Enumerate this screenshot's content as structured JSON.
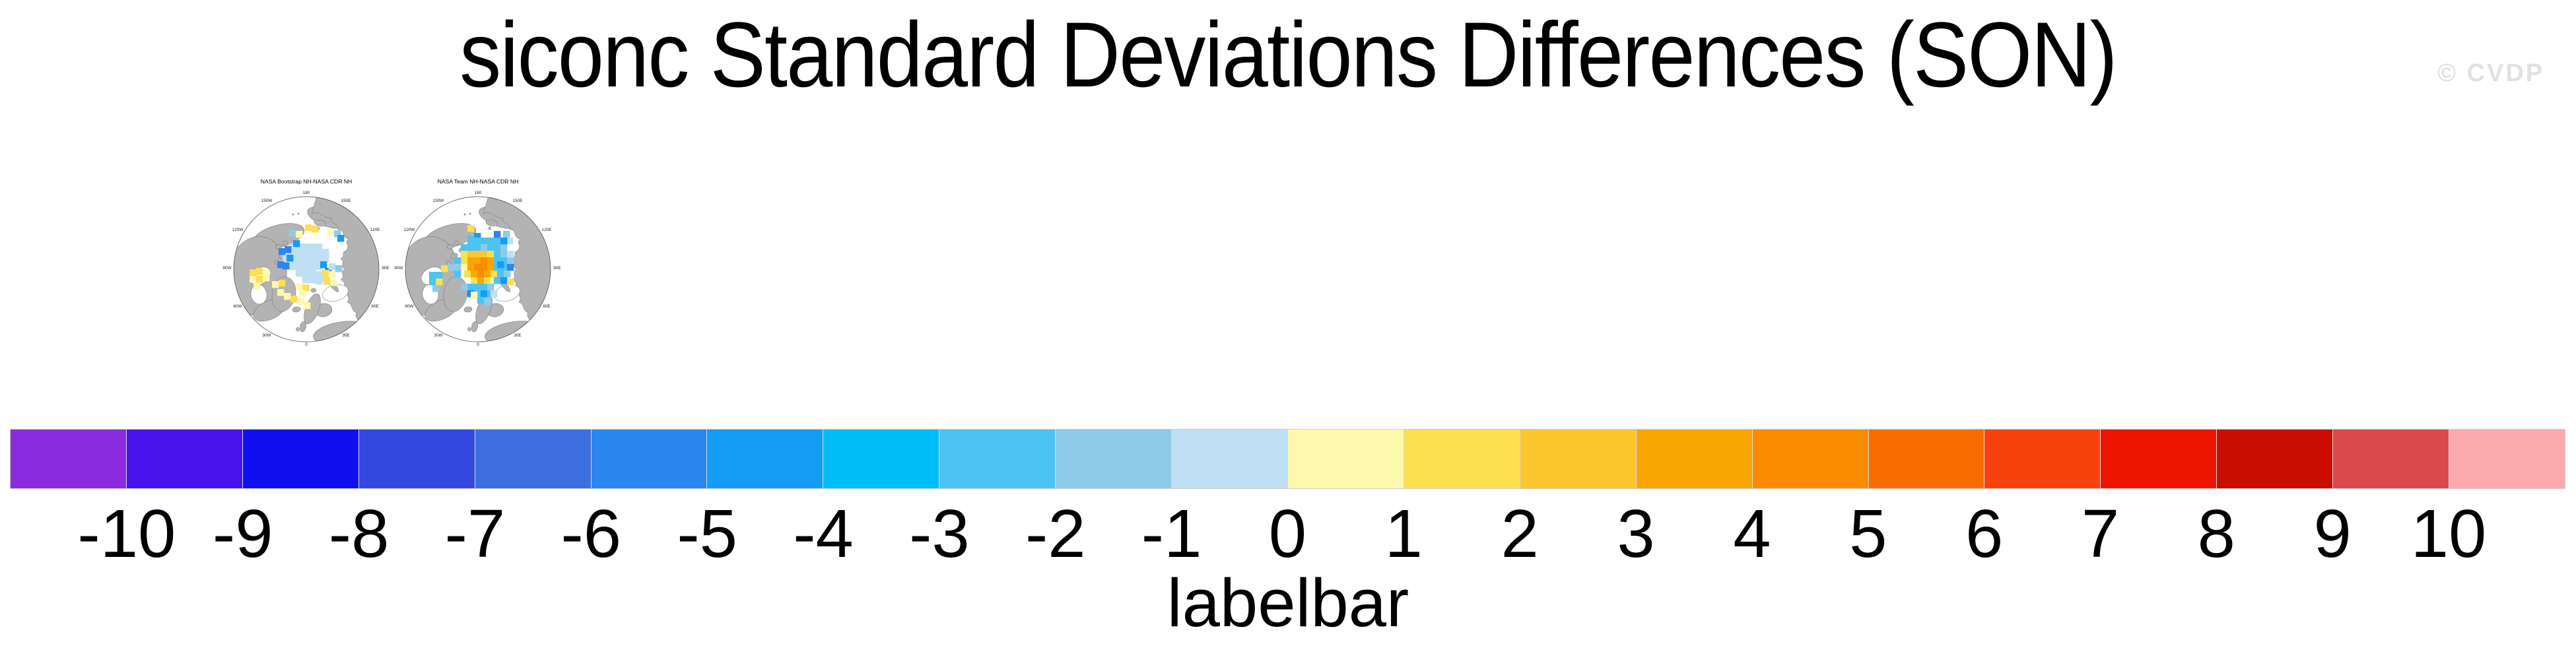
{
  "page": {
    "title": "siconc Standard Deviations Differences (SON)",
    "watermark": "© CVDP"
  },
  "maps": {
    "lon_labels": [
      "180",
      "150W",
      "150E",
      "120W",
      "120E",
      "90W",
      "90E",
      "60W",
      "60E",
      "30W",
      "30E",
      "0"
    ],
    "land_color": "#b3b3b3",
    "ocean_color": "#ffffff",
    "panels": [
      {
        "title": "NASA Bootstrap NH-NASA CDR NH",
        "cells": [
          [
            -2,
            -68,
            12
          ],
          [
            8,
            -66,
            12
          ],
          [
            -26,
            -60,
            9
          ],
          [
            -16,
            -58,
            11
          ],
          [
            32,
            -61,
            11
          ],
          [
            42,
            -59,
            9
          ],
          [
            47,
            -52,
            6
          ],
          [
            -26,
            -39,
            10
          ],
          [
            -16,
            -39,
            10
          ],
          [
            -6,
            -39,
            10
          ],
          [
            4,
            -39,
            10
          ],
          [
            14,
            -39,
            10
          ],
          [
            -36,
            -31,
            10
          ],
          [
            -26,
            -29,
            10
          ],
          [
            -16,
            -29,
            10
          ],
          [
            -6,
            -29,
            10
          ],
          [
            4,
            -29,
            10
          ],
          [
            14,
            -29,
            10
          ],
          [
            24,
            -31,
            10
          ],
          [
            -36,
            -21,
            10
          ],
          [
            -26,
            -19,
            10
          ],
          [
            -16,
            -19,
            10
          ],
          [
            -6,
            -19,
            10
          ],
          [
            4,
            -19,
            10
          ],
          [
            14,
            -19,
            10
          ],
          [
            24,
            -21,
            10
          ],
          [
            -26,
            -9,
            10
          ],
          [
            -16,
            -9,
            10
          ],
          [
            -6,
            -9,
            10
          ],
          [
            4,
            -9,
            10
          ],
          [
            14,
            -9,
            10
          ],
          [
            -16,
            1,
            10
          ],
          [
            -6,
            1,
            10
          ],
          [
            4,
            1,
            10
          ],
          [
            14,
            3,
            10
          ],
          [
            -6,
            11,
            10
          ],
          [
            4,
            11,
            10
          ],
          [
            14,
            13,
            10
          ],
          [
            24,
            9,
            10
          ],
          [
            -33,
            -35,
            5
          ],
          [
            -30,
            -22,
            6
          ],
          [
            -36,
            -10,
            5
          ],
          [
            21,
            -12,
            6
          ],
          [
            28,
            -2,
            5
          ],
          [
            -42,
            -32,
            5
          ],
          [
            -44,
            -12,
            5
          ],
          [
            -20,
            -44,
            6
          ],
          [
            -86,
            0,
            12
          ],
          [
            -76,
            -2,
            12
          ],
          [
            -66,
            0,
            11
          ],
          [
            -86,
            10,
            11
          ],
          [
            -76,
            10,
            12
          ],
          [
            -66,
            8,
            11
          ],
          [
            -80,
            20,
            11
          ],
          [
            -52,
            18,
            11
          ],
          [
            -42,
            16,
            12
          ],
          [
            -44,
            30,
            11
          ],
          [
            -34,
            36,
            11
          ],
          [
            -16,
            21,
            11
          ],
          [
            -6,
            23,
            12
          ],
          [
            -11,
            31,
            11
          ],
          [
            -24,
            40,
            12
          ],
          [
            -14,
            44,
            11
          ],
          [
            -4,
            50,
            11
          ],
          [
            24,
            1,
            12
          ],
          [
            34,
            3,
            11
          ],
          [
            26,
            13,
            12
          ],
          [
            36,
            15,
            11
          ],
          [
            34,
            -9,
            10
          ],
          [
            44,
            -6,
            9
          ]
        ]
      },
      {
        "title": "NASA Team NH-NASA CDR NH",
        "cells": [
          [
            -16,
            -67,
            12
          ],
          [
            -6,
            -55,
            6
          ],
          [
            -16,
            -51,
            8
          ],
          [
            38,
            -58,
            9
          ],
          [
            43,
            -48,
            10
          ],
          [
            -16,
            -48,
            8
          ],
          [
            -6,
            -48,
            8
          ],
          [
            4,
            -48,
            8
          ],
          [
            14,
            -48,
            8
          ],
          [
            24,
            -48,
            8
          ],
          [
            -26,
            -38,
            8
          ],
          [
            -16,
            -38,
            8
          ],
          [
            -6,
            -38,
            8
          ],
          [
            4,
            -38,
            9
          ],
          [
            14,
            -38,
            8
          ],
          [
            24,
            -38,
            8
          ],
          [
            34,
            -38,
            9
          ],
          [
            24,
            -58,
            5
          ],
          [
            34,
            -48,
            6
          ],
          [
            -26,
            -28,
            12
          ],
          [
            -16,
            -28,
            13
          ],
          [
            -6,
            -28,
            13
          ],
          [
            4,
            -28,
            13
          ],
          [
            14,
            -28,
            12
          ],
          [
            -26,
            -18,
            12
          ],
          [
            -16,
            -18,
            14
          ],
          [
            -6,
            -18,
            14
          ],
          [
            4,
            -18,
            15
          ],
          [
            14,
            -18,
            14
          ],
          [
            -26,
            -8,
            11
          ],
          [
            -16,
            -8,
            14
          ],
          [
            -6,
            -8,
            15
          ],
          [
            4,
            -8,
            15
          ],
          [
            14,
            -8,
            14
          ],
          [
            -21,
            2,
            12
          ],
          [
            -11,
            2,
            14
          ],
          [
            -1,
            2,
            15
          ],
          [
            9,
            2,
            14
          ],
          [
            19,
            2,
            12
          ],
          [
            -11,
            12,
            12
          ],
          [
            -1,
            12,
            14
          ],
          [
            9,
            12,
            12
          ],
          [
            19,
            12,
            11
          ],
          [
            24,
            -28,
            8
          ],
          [
            34,
            -28,
            9
          ],
          [
            24,
            -18,
            8
          ],
          [
            34,
            -18,
            8
          ],
          [
            44,
            -18,
            9
          ],
          [
            24,
            -8,
            8
          ],
          [
            34,
            -8,
            8
          ],
          [
            44,
            -8,
            5
          ],
          [
            29,
            2,
            8
          ],
          [
            39,
            2,
            9
          ],
          [
            24,
            12,
            8
          ],
          [
            34,
            12,
            6
          ],
          [
            44,
            -28,
            10
          ],
          [
            -16,
            22,
            8
          ],
          [
            -6,
            22,
            8
          ],
          [
            4,
            22,
            8
          ],
          [
            14,
            22,
            9
          ],
          [
            -26,
            22,
            9
          ],
          [
            -6,
            32,
            8
          ],
          [
            4,
            32,
            6
          ],
          [
            14,
            32,
            8
          ],
          [
            -16,
            32,
            5
          ],
          [
            -1,
            42,
            8
          ],
          [
            9,
            44,
            9
          ],
          [
            19,
            32,
            10
          ],
          [
            -36,
            -18,
            8
          ],
          [
            -36,
            -8,
            9
          ],
          [
            -36,
            2,
            8
          ],
          [
            -46,
            -8,
            9
          ],
          [
            -74,
            4,
            8
          ],
          [
            -64,
            4,
            8
          ],
          [
            -74,
            14,
            8
          ],
          [
            -64,
            14,
            12
          ],
          [
            -69,
            24,
            9
          ],
          [
            -56,
            -6,
            12
          ],
          [
            -11,
            34,
            11
          ],
          [
            44,
            14,
            12
          ],
          [
            29,
            -12,
            6
          ]
        ]
      }
    ]
  },
  "labelbar": {
    "title": "labelbar",
    "tick_labels": [
      "-10",
      "-9",
      "-8",
      "-7",
      "-6",
      "-5",
      "-4",
      "-3",
      "-2",
      "-1",
      "0",
      "1",
      "2",
      "3",
      "4",
      "5",
      "6",
      "7",
      "8",
      "9",
      "10"
    ],
    "colors": [
      "#8b2be0",
      "#4713ec",
      "#1010ef",
      "#3448e0",
      "#3d6ee0",
      "#2b86ef",
      "#149df5",
      "#00bef8",
      "#4cc3f2",
      "#8ecbe9",
      "#bfe0f4",
      "#fdf8ab",
      "#fddf4f",
      "#fcc62e",
      "#f9a602",
      "#fb8c00",
      "#f96c00",
      "#f8420e",
      "#ee1500",
      "#c90d00",
      "#d9494e",
      "#fcaaad"
    ]
  },
  "chart_data": {
    "type": "heatmap",
    "title": "siconc Standard Deviations Differences (SON)",
    "panels": [
      "NASA Bootstrap NH-NASA CDR NH",
      "NASA Team NH-NASA CDR NH"
    ],
    "projection": "Northern Hemisphere polar stereographic, 0 longitude at bottom, 180 at top",
    "colorbar_title": "labelbar",
    "levels": [
      -10,
      -9,
      -8,
      -7,
      -6,
      -5,
      -4,
      -3,
      -2,
      -1,
      0,
      1,
      2,
      3,
      4,
      5,
      6,
      7,
      8,
      9,
      10
    ],
    "colors": [
      "#8b2be0",
      "#4713ec",
      "#1010ef",
      "#3448e0",
      "#3d6ee0",
      "#2b86ef",
      "#149df5",
      "#00bef8",
      "#4cc3f2",
      "#8ecbe9",
      "#bfe0f4",
      "#fdf8ab",
      "#fddf4f",
      "#fcc62e",
      "#f9a602",
      "#fb8c00",
      "#f96c00",
      "#f8420e",
      "#ee1500",
      "#c90d00",
      "#d9494e",
      "#fcaaad"
    ],
    "legend_position": "bottom",
    "note": "Gridded cells per panel stored in maps.panels[].cells as [dx,dy,color_index] offsets from the pole; color_index indexes colors[], bins bounded by levels[]."
  }
}
